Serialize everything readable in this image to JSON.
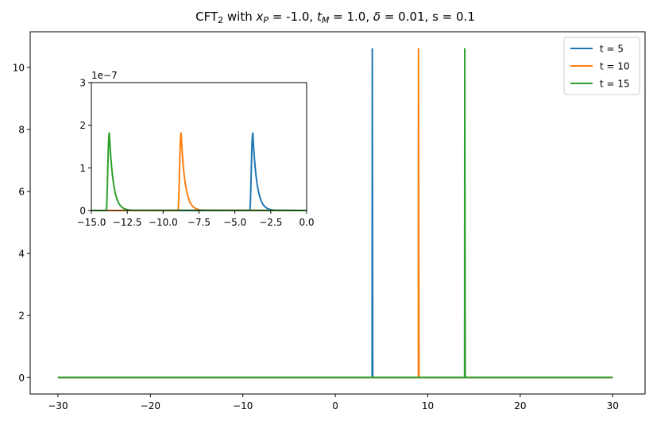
{
  "chart_data": [
    {
      "type": "line",
      "title_parts": [
        "CFT",
        "2",
        " with ",
        "x",
        "P",
        " = -1.0, ",
        "t",
        "M",
        " = 1.0, ",
        "δ",
        " = 0.01, s = 0.1"
      ],
      "xlim": [
        -33,
        33.5
      ],
      "ylim": [
        -0.53,
        11.15
      ],
      "xticks": [
        -30,
        -20,
        -10,
        0,
        10,
        20,
        30
      ],
      "yticks": [
        0,
        2,
        4,
        6,
        8,
        10
      ],
      "xtick_labels": [
        "−30",
        "−20",
        "−10",
        "0",
        "10",
        "20",
        "30"
      ],
      "ytick_labels": [
        "0",
        "2",
        "4",
        "6",
        "8",
        "10"
      ],
      "legend_placement": "top-right",
      "series": [
        {
          "name": "t = 5",
          "color": "#1f77b4",
          "x": [
            -30,
            3.98,
            4.0,
            4.05,
            4.1,
            30
          ],
          "y": [
            0,
            0,
            10.62,
            0,
            0,
            0
          ]
        },
        {
          "name": "t = 10",
          "color": "#ff7f0e",
          "x": [
            -30,
            8.98,
            9.0,
            9.05,
            9.1,
            30
          ],
          "y": [
            0,
            0,
            10.62,
            0,
            0,
            0
          ]
        },
        {
          "name": "t = 15",
          "color": "#2ca02c",
          "x": [
            -30,
            13.98,
            14.0,
            14.05,
            14.1,
            30
          ],
          "y": [
            0,
            0,
            10.62,
            0,
            0,
            0
          ]
        }
      ]
    },
    {
      "type": "line",
      "inset": true,
      "xlim": [
        -15,
        0
      ],
      "ylim": [
        0,
        3
      ],
      "offset_text": "1e−7",
      "xticks": [
        -15,
        -12.5,
        -10,
        -7.5,
        -5,
        -2.5,
        0
      ],
      "yticks": [
        0,
        1,
        2,
        3
      ],
      "xtick_labels": [
        "−15.0",
        "−12.5",
        "−10.0",
        "−7.5",
        "−5.0",
        "−2.5",
        "0.0"
      ],
      "ytick_labels": [
        "0",
        "1",
        "2",
        "3"
      ],
      "series": [
        {
          "name": "t = 5",
          "color": "#1f77b4",
          "peak_x": -3.75,
          "peak_y": 1.82,
          "onset_x": -3.95
        },
        {
          "name": "t = 10",
          "color": "#ff7f0e",
          "peak_x": -8.75,
          "peak_y": 1.82,
          "onset_x": -8.95
        },
        {
          "name": "t = 15",
          "color": "#2ca02c",
          "peak_x": -13.75,
          "peak_y": 1.82,
          "onset_x": -13.95
        }
      ]
    }
  ]
}
